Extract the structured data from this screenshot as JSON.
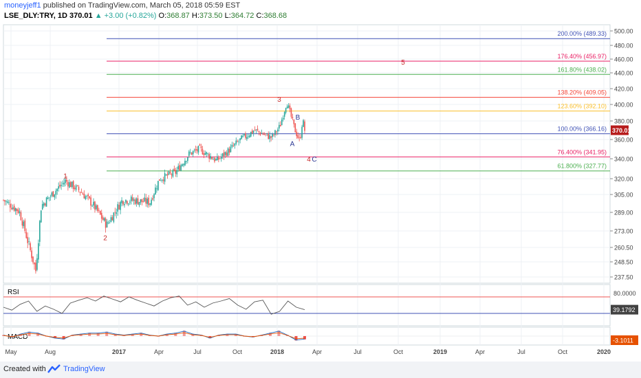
{
  "header": {
    "author": "moneyjeff1",
    "published": "published on TradingView.com, March 05, 2018 05:59 EST",
    "symbol": "LSE_DLY:TRY, 1D",
    "last": "370.01",
    "change": "▲ +3.00 (+0.82%)",
    "o_label": "O:",
    "o_value": "368.87",
    "h_label": "H:",
    "h_value": "373.50",
    "l_label": "L:",
    "l_value": "364.72",
    "c_label": "C:",
    "c_value": "368.68"
  },
  "footer": {
    "created": "Created with",
    "brand": "TradingView"
  },
  "colors": {
    "up": "#26a69a",
    "down": "#ef5350",
    "fibBlue": "#3f51b5",
    "fibMagenta": "#e91e63",
    "fibGreen": "#4caf50",
    "fibRed": "#f44336",
    "fibYellow": "#fbc02d",
    "waveRed": "#c62828",
    "waveBlue": "#283593"
  },
  "chart_data": [
    {
      "type": "candlestick",
      "title": "LSE_DLY:TRY, 1D",
      "yticks": [
        500.0,
        480.0,
        460.0,
        440.0,
        420.0,
        400.0,
        380.0,
        360.0,
        340.0,
        320.0,
        305.0,
        289.0,
        273.0,
        260.5,
        248.5,
        237.5
      ],
      "xticks": [
        "May",
        "Aug",
        "2017",
        "Apr",
        "Jul",
        "Oct",
        "2018",
        "Apr",
        "Jul",
        "Oct",
        "2019",
        "Apr",
        "Jul",
        "Oct",
        "2020"
      ],
      "last_price_label": "370.01",
      "price_path": [
        [
          "May",
          300
        ],
        [
          "Jun",
          290
        ],
        [
          "Jun 24",
          242
        ],
        [
          "Jul",
          295
        ],
        [
          "Aug",
          318
        ],
        [
          "Sep",
          308
        ],
        [
          "Oct",
          296
        ],
        [
          "Nov",
          278
        ],
        [
          "Dec",
          300
        ],
        [
          "2017",
          300
        ],
        [
          "Feb",
          298
        ],
        [
          "Mar",
          320
        ],
        [
          "Apr",
          326
        ],
        [
          "May",
          345
        ],
        [
          "Jun",
          350
        ],
        [
          "Jul",
          338
        ],
        [
          "Aug",
          350
        ],
        [
          "Sep",
          360
        ],
        [
          "Oct",
          370
        ],
        [
          "Nov",
          362
        ],
        [
          "Dec",
          374
        ],
        [
          "2018",
          403
        ],
        [
          "Jan 20",
          372
        ],
        [
          "Feb 05",
          358
        ],
        [
          "Feb 15",
          382
        ],
        [
          "Mar 05",
          370
        ]
      ],
      "fibonacci": [
        {
          "label": "200.00% (489.33)",
          "value": 489.33,
          "color": "#3f51b5"
        },
        {
          "label": "176.40% (456.97)",
          "value": 456.97,
          "color": "#e91e63"
        },
        {
          "label": "161.80% (438.02)",
          "value": 438.02,
          "color": "#4caf50"
        },
        {
          "label": "138.20% (409.05)",
          "value": 409.05,
          "color": "#f44336"
        },
        {
          "label": "123.60% (392.10)",
          "value": 392.1,
          "color": "#fbc02d"
        },
        {
          "label": "100.00% (366.16)",
          "value": 366.16,
          "color": "#3f51b5"
        },
        {
          "label": "76.400% (341.95)",
          "value": 341.95,
          "color": "#e91e63"
        },
        {
          "label": "61.800% (327.77)",
          "value": 327.77,
          "color": "#4caf50"
        }
      ],
      "wave_labels": [
        {
          "text": "1",
          "x": "Aug",
          "y": 323,
          "color": "#c62828"
        },
        {
          "text": "2",
          "x": "Nov",
          "y": 268,
          "color": "#c62828"
        },
        {
          "text": "3",
          "x": "Jan 2018",
          "y": 407,
          "color": "#c62828"
        },
        {
          "text": "5",
          "x": "Jul 2018",
          "y": 456,
          "color": "#c62828"
        },
        {
          "text": "4",
          "x": "Mar 2018",
          "y": 340,
          "color": "#c62828"
        },
        {
          "text": "C",
          "x": "Mar 2018",
          "y": 340,
          "color": "#283593"
        },
        {
          "text": "A",
          "x": "Feb 2018",
          "y": 356,
          "color": "#283593"
        },
        {
          "text": "B",
          "x": "Feb 2018",
          "y": 385,
          "color": "#283593"
        }
      ]
    },
    {
      "type": "line",
      "title": "RSI",
      "yticks": [
        80.0
      ],
      "last_value_label": "39.1792",
      "levels": [
        70,
        30
      ],
      "values": [
        45,
        38,
        52,
        60,
        35,
        48,
        40,
        30,
        55,
        62,
        68,
        60,
        72,
        65,
        58,
        70,
        62,
        55,
        48,
        60,
        68,
        72,
        50,
        58,
        45,
        55,
        60,
        66,
        50,
        40,
        58,
        62,
        28,
        35,
        60,
        45,
        39
      ]
    },
    {
      "type": "line",
      "title": "MACD",
      "last_value_label": "-3.1011",
      "values": [
        1,
        -1,
        2,
        4,
        3,
        0,
        -2,
        -3,
        1,
        2,
        3,
        3,
        4,
        2,
        1,
        2,
        3,
        1,
        0,
        2,
        3,
        5,
        2,
        1,
        -2,
        1,
        2,
        2,
        0,
        -1,
        1,
        3,
        5,
        1,
        -4,
        -3
      ]
    }
  ]
}
